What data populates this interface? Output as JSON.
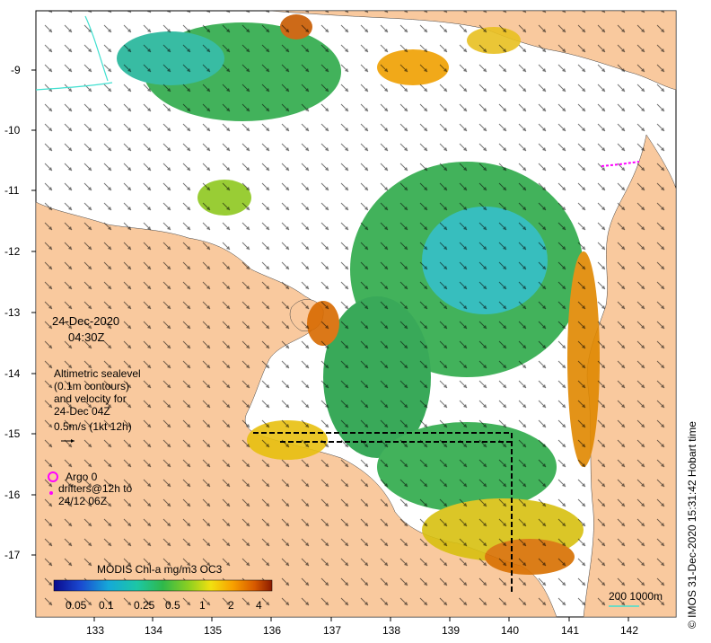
{
  "map": {
    "date": "24-Dec-2020",
    "time": "04:30Z",
    "sealevel_note": [
      "Altimetric sealevel",
      "(0.1m contours)",
      "and velocity for",
      "24-Dec 04Z"
    ],
    "velocity_scale_label": "0.5m/s (1kt 12h)",
    "argo_label": "Argo 0",
    "drifters_label": [
      "drifters@12h to",
      "24/12 06Z"
    ],
    "colorbar_title": "MODIS Chl-a mg/m3 OC3",
    "colorbar_ticks": [
      "0.05",
      "0.1",
      "0.25",
      "0.5",
      "1",
      "2",
      "4"
    ],
    "depth_legend": "200  1000m",
    "credit": "© IMOS 31-Dec-2020 15:31:42 Hobart time",
    "lon_ticks": [
      "133",
      "134",
      "135",
      "136",
      "137",
      "138",
      "139",
      "140",
      "141",
      "142"
    ],
    "lat_ticks": [
      "-9",
      "-10",
      "-11",
      "-12",
      "-13",
      "-14",
      "-15",
      "-16",
      "-17"
    ],
    "colors": {
      "land": "#f9c99e",
      "ocean": "#ffffff",
      "argo": "#ff00ff",
      "contour_200m": "#40e0d0",
      "chl_low": "#1010a0",
      "chl_mid": "#2eaa4a",
      "chl_high": "#c85a00"
    }
  }
}
